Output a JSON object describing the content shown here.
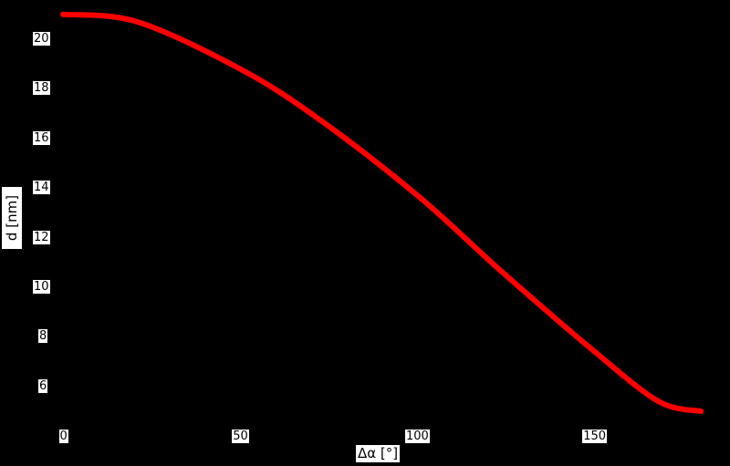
{
  "chart_data": {
    "type": "line",
    "title": "",
    "xlabel": "Δα [°]",
    "ylabel": "d [nm]",
    "x_ticks": [
      "0",
      "50",
      "100",
      "150"
    ],
    "y_ticks": [
      "6",
      "8",
      "10",
      "12",
      "14",
      "16",
      "18",
      "20"
    ],
    "xlim": [
      0,
      180
    ],
    "ylim": [
      4.5,
      21.5
    ],
    "grid": false,
    "legend": null,
    "series": [
      {
        "name": "d",
        "color": "#ff0000",
        "x": [
          0,
          21,
          50,
          72,
          100,
          124,
          150,
          168,
          180
        ],
        "y": [
          21.0,
          20.7,
          18.8,
          16.8,
          13.7,
          10.6,
          7.4,
          5.4,
          5.0
        ]
      }
    ]
  },
  "colors": {
    "background": "#000000",
    "line": "#ff0000",
    "label_bg": "#ffffff"
  }
}
